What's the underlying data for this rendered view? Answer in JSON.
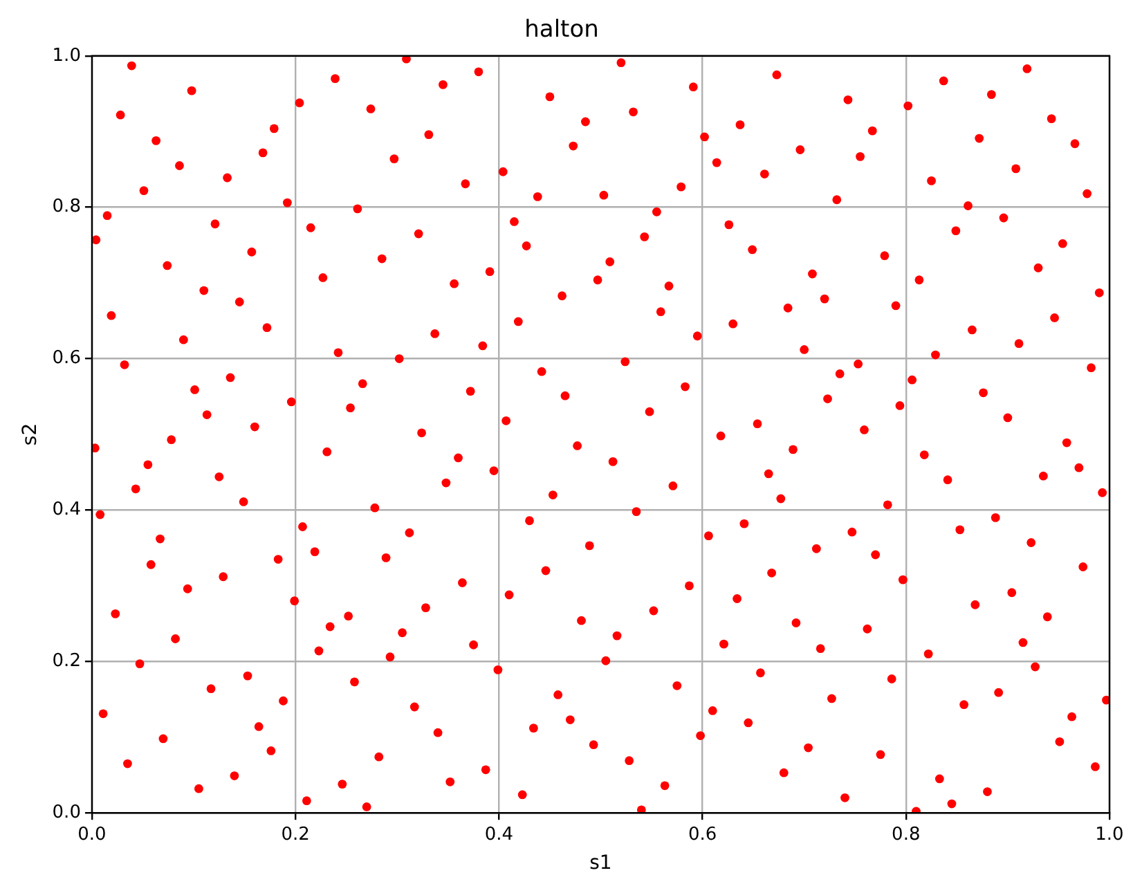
{
  "chart_data": {
    "type": "scatter",
    "title": "halton",
    "xlabel": "s1",
    "ylabel": "s2",
    "xlim": [
      0,
      1
    ],
    "ylim": [
      0,
      1
    ],
    "xticks": [
      {
        "value": 0,
        "label": "0.0"
      },
      {
        "value": 0.2,
        "label": "0.2"
      },
      {
        "value": 0.4,
        "label": "0.4"
      },
      {
        "value": 0.6,
        "label": "0.6"
      },
      {
        "value": 0.8,
        "label": "0.8"
      },
      {
        "value": 1,
        "label": "1.0"
      }
    ],
    "yticks": [
      {
        "value": 0,
        "label": "0.0"
      },
      {
        "value": 0.2,
        "label": "0.2"
      },
      {
        "value": 0.4,
        "label": "0.4"
      },
      {
        "value": 0.6,
        "label": "0.6"
      },
      {
        "value": 0.8,
        "label": "0.8"
      },
      {
        "value": 1,
        "label": "1.0"
      }
    ],
    "grid": true,
    "marker": "circle",
    "series": [
      {
        "color": "#ff0000",
        "x": [
          0.039,
          0.098,
          0.028,
          0.179,
          0.063,
          0.168,
          0.086,
          0.133,
          0.051,
          0.192,
          0.015,
          0.121,
          0.004,
          0.157,
          0.074,
          0.11,
          0.145,
          0.019,
          0.172,
          0.09,
          0.032,
          0.136,
          0.101,
          0.196,
          0.113,
          0.16,
          0.309,
          0.239,
          0.204,
          0.274,
          0.331,
          0.297,
          0.261,
          0.215,
          0.321,
          0.285,
          0.227,
          0.242,
          0.302,
          0.266,
          0.254,
          0.324,
          0.38,
          0.345,
          0.367,
          0.52,
          0.591,
          0.45,
          0.532,
          0.485,
          0.602,
          0.473,
          0.404,
          0.438,
          0.503,
          0.579,
          0.637,
          0.614,
          0.661,
          0.555,
          0.415,
          0.543,
          0.427,
          0.509,
          0.391,
          0.497,
          0.356,
          0.567,
          0.462,
          0.419,
          0.559,
          0.337,
          0.384,
          0.595,
          0.626,
          0.649,
          0.63,
          0.524,
          0.442,
          0.583,
          0.372,
          0.465,
          0.548,
          0.407,
          0.654,
          0.618,
          0.673,
          0.743,
          0.802,
          0.767,
          0.696,
          0.755,
          0.732,
          0.837,
          0.919,
          0.884,
          0.943,
          0.872,
          0.966,
          0.908,
          0.825,
          0.978,
          0.861,
          0.896,
          0.849,
          0.954,
          0.779,
          0.93,
          0.708,
          0.813,
          0.99,
          0.72,
          0.684,
          0.79,
          0.946,
          0.865,
          0.911,
          0.7,
          0.829,
          0.753,
          0.982,
          0.735,
          0.806,
          0.876,
          0.723,
          0.794,
          0.9,
          0.759,
          0.003,
          0.078,
          0.055,
          0.125,
          0.043,
          0.149,
          0.231,
          0.278,
          0.008,
          0.207,
          0.067,
          0.312,
          0.219,
          0.058,
          0.289,
          0.183,
          0.129,
          0.094,
          0.199,
          0.328,
          0.023,
          0.252,
          0.234,
          0.305,
          0.082,
          0.223,
          0.293,
          0.047,
          0.153,
          0.117,
          0.258,
          0.188,
          0.011,
          0.317,
          0.164,
          0.07,
          0.176,
          0.282,
          0.035,
          0.14,
          0.246,
          0.105,
          0.211,
          0.27,
          0.477,
          0.36,
          0.512,
          0.395,
          0.665,
          0.348,
          0.571,
          0.453,
          0.535,
          0.43,
          0.606,
          0.641,
          0.489,
          0.446,
          0.668,
          0.364,
          0.587,
          0.41,
          0.634,
          0.552,
          0.481,
          0.516,
          0.375,
          0.621,
          0.505,
          0.399,
          0.657,
          0.575,
          0.458,
          0.61,
          0.47,
          0.645,
          0.434,
          0.34,
          0.493,
          0.598,
          0.528,
          0.387,
          0.352,
          0.563,
          0.423,
          0.54,
          0.689,
          0.818,
          0.958,
          0.97,
          0.841,
          0.935,
          0.677,
          0.782,
          0.993,
          0.888,
          0.747,
          0.853,
          0.712,
          0.923,
          0.77,
          0.974,
          0.797,
          0.904,
          0.868,
          0.939,
          0.692,
          0.762,
          0.716,
          0.915,
          0.822,
          0.927,
          0.786,
          0.727,
          0.891,
          0.857,
          0.997,
          0.963,
          0.704,
          0.951,
          0.775,
          0.68,
          0.986,
          0.833,
          0.74,
          0.88,
          0.845,
          0.81
        ],
        "values": [
          0.987,
          0.954,
          0.922,
          0.904,
          0.888,
          0.872,
          0.855,
          0.839,
          0.822,
          0.806,
          0.789,
          0.778,
          0.757,
          0.741,
          0.723,
          0.69,
          0.675,
          0.657,
          0.641,
          0.625,
          0.592,
          0.575,
          0.559,
          0.543,
          0.526,
          0.51,
          0.996,
          0.97,
          0.938,
          0.93,
          0.896,
          0.864,
          0.798,
          0.773,
          0.765,
          0.732,
          0.707,
          0.608,
          0.6,
          0.567,
          0.535,
          0.502,
          0.979,
          0.962,
          0.831,
          0.991,
          0.959,
          0.946,
          0.926,
          0.913,
          0.893,
          0.881,
          0.847,
          0.814,
          0.816,
          0.827,
          0.909,
          0.859,
          0.844,
          0.794,
          0.781,
          0.761,
          0.749,
          0.728,
          0.715,
          0.704,
          0.699,
          0.696,
          0.683,
          0.649,
          0.662,
          0.633,
          0.617,
          0.63,
          0.777,
          0.744,
          0.646,
          0.596,
          0.583,
          0.563,
          0.557,
          0.551,
          0.53,
          0.518,
          0.514,
          0.498,
          0.975,
          0.942,
          0.934,
          0.901,
          0.876,
          0.867,
          0.81,
          0.967,
          0.983,
          0.949,
          0.917,
          0.891,
          0.884,
          0.851,
          0.835,
          0.818,
          0.802,
          0.786,
          0.769,
          0.752,
          0.736,
          0.72,
          0.712,
          0.704,
          0.687,
          0.679,
          0.667,
          0.67,
          0.654,
          0.638,
          0.62,
          0.612,
          0.605,
          0.593,
          0.588,
          0.58,
          0.572,
          0.555,
          0.547,
          0.538,
          0.522,
          0.506,
          0.482,
          0.493,
          0.46,
          0.444,
          0.428,
          0.411,
          0.477,
          0.403,
          0.394,
          0.378,
          0.362,
          0.37,
          0.345,
          0.328,
          0.337,
          0.335,
          0.312,
          0.296,
          0.28,
          0.271,
          0.263,
          0.26,
          0.246,
          0.238,
          0.23,
          0.214,
          0.206,
          0.197,
          0.181,
          0.164,
          0.173,
          0.148,
          0.131,
          0.14,
          0.114,
          0.098,
          0.082,
          0.074,
          0.065,
          0.049,
          0.038,
          0.032,
          0.016,
          0.008,
          0.485,
          0.469,
          0.464,
          0.452,
          0.448,
          0.436,
          0.432,
          0.42,
          0.398,
          0.386,
          0.366,
          0.382,
          0.353,
          0.32,
          0.317,
          0.304,
          0.3,
          0.288,
          0.283,
          0.267,
          0.254,
          0.234,
          0.222,
          0.223,
          0.201,
          0.189,
          0.185,
          0.168,
          0.156,
          0.135,
          0.123,
          0.119,
          0.112,
          0.106,
          0.09,
          0.102,
          0.069,
          0.057,
          0.041,
          0.036,
          0.024,
          0.004,
          0.48,
          0.473,
          0.489,
          0.456,
          0.44,
          0.445,
          0.415,
          0.407,
          0.423,
          0.39,
          0.371,
          0.374,
          0.349,
          0.357,
          0.341,
          0.325,
          0.308,
          0.291,
          0.275,
          0.259,
          0.251,
          0.243,
          0.217,
          0.225,
          0.21,
          0.193,
          0.177,
          0.151,
          0.159,
          0.143,
          0.149,
          0.127,
          0.086,
          0.094,
          0.077,
          0.053,
          0.061,
          0.045,
          0.02,
          0.028,
          0.012,
          0.002
        ]
      }
    ]
  }
}
